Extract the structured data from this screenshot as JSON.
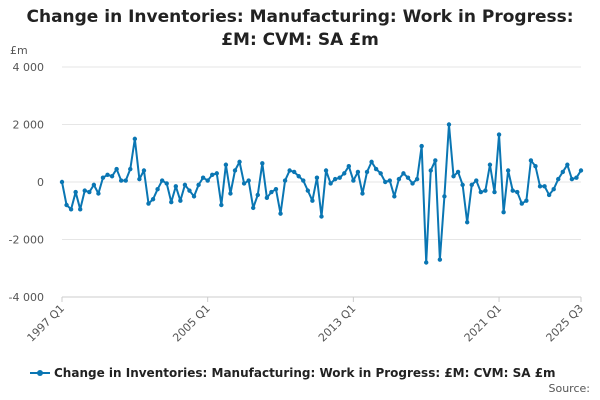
{
  "chart_data": {
    "type": "line",
    "title_lines": [
      "Change in Inventories: Manufacturing: Work in Progress:",
      "£M: CVM: SA £m"
    ],
    "unit": "£m",
    "ylim": [
      -4000,
      4000
    ],
    "y_ticks": [
      {
        "value": 4000,
        "label": "4 000"
      },
      {
        "value": 2000,
        "label": "2 000"
      },
      {
        "value": 0,
        "label": "0"
      },
      {
        "value": -2000,
        "label": "-2 000"
      },
      {
        "value": -4000,
        "label": "-4 000"
      }
    ],
    "x_start": "1997 Q1",
    "x_ticks": [
      {
        "index": 0,
        "label": "1997 Q1"
      },
      {
        "index": 32,
        "label": "2005 Q1"
      },
      {
        "index": 64,
        "label": "2013 Q1"
      },
      {
        "index": 96,
        "label": "2021 Q1"
      },
      {
        "index": 114,
        "label": "2025 Q3"
      }
    ],
    "grid": true,
    "legend_position": "bottom",
    "series": [
      {
        "name": "Change in Inventories: Manufacturing: Work in Progress: £M: CVM: SA £m",
        "color": "#0a76b3",
        "values": [
          0,
          -800,
          -950,
          -350,
          -950,
          -300,
          -350,
          -100,
          -400,
          150,
          250,
          200,
          450,
          50,
          50,
          450,
          1500,
          100,
          400,
          -750,
          -600,
          -250,
          50,
          -50,
          -700,
          -150,
          -650,
          -100,
          -300,
          -500,
          -100,
          150,
          50,
          250,
          300,
          -800,
          600,
          -400,
          400,
          700,
          -50,
          50,
          -900,
          -450,
          650,
          -550,
          -350,
          -250,
          -1100,
          50,
          400,
          350,
          200,
          50,
          -300,
          -650,
          150,
          -1200,
          400,
          -50,
          100,
          150,
          300,
          550,
          50,
          350,
          -400,
          350,
          700,
          450,
          300,
          0,
          50,
          -500,
          100,
          300,
          150,
          -50,
          100,
          1250,
          -2800,
          400,
          750,
          -2700,
          -500,
          2000,
          200,
          350,
          -100,
          -1400,
          -100,
          50,
          -350,
          -300,
          600,
          -350,
          1650,
          -1050,
          400,
          -300,
          -350,
          -750,
          -650,
          750,
          550,
          -150,
          -150,
          -450,
          -250,
          100,
          350,
          600,
          100,
          150,
          400
        ]
      }
    ],
    "source": "Source:"
  }
}
